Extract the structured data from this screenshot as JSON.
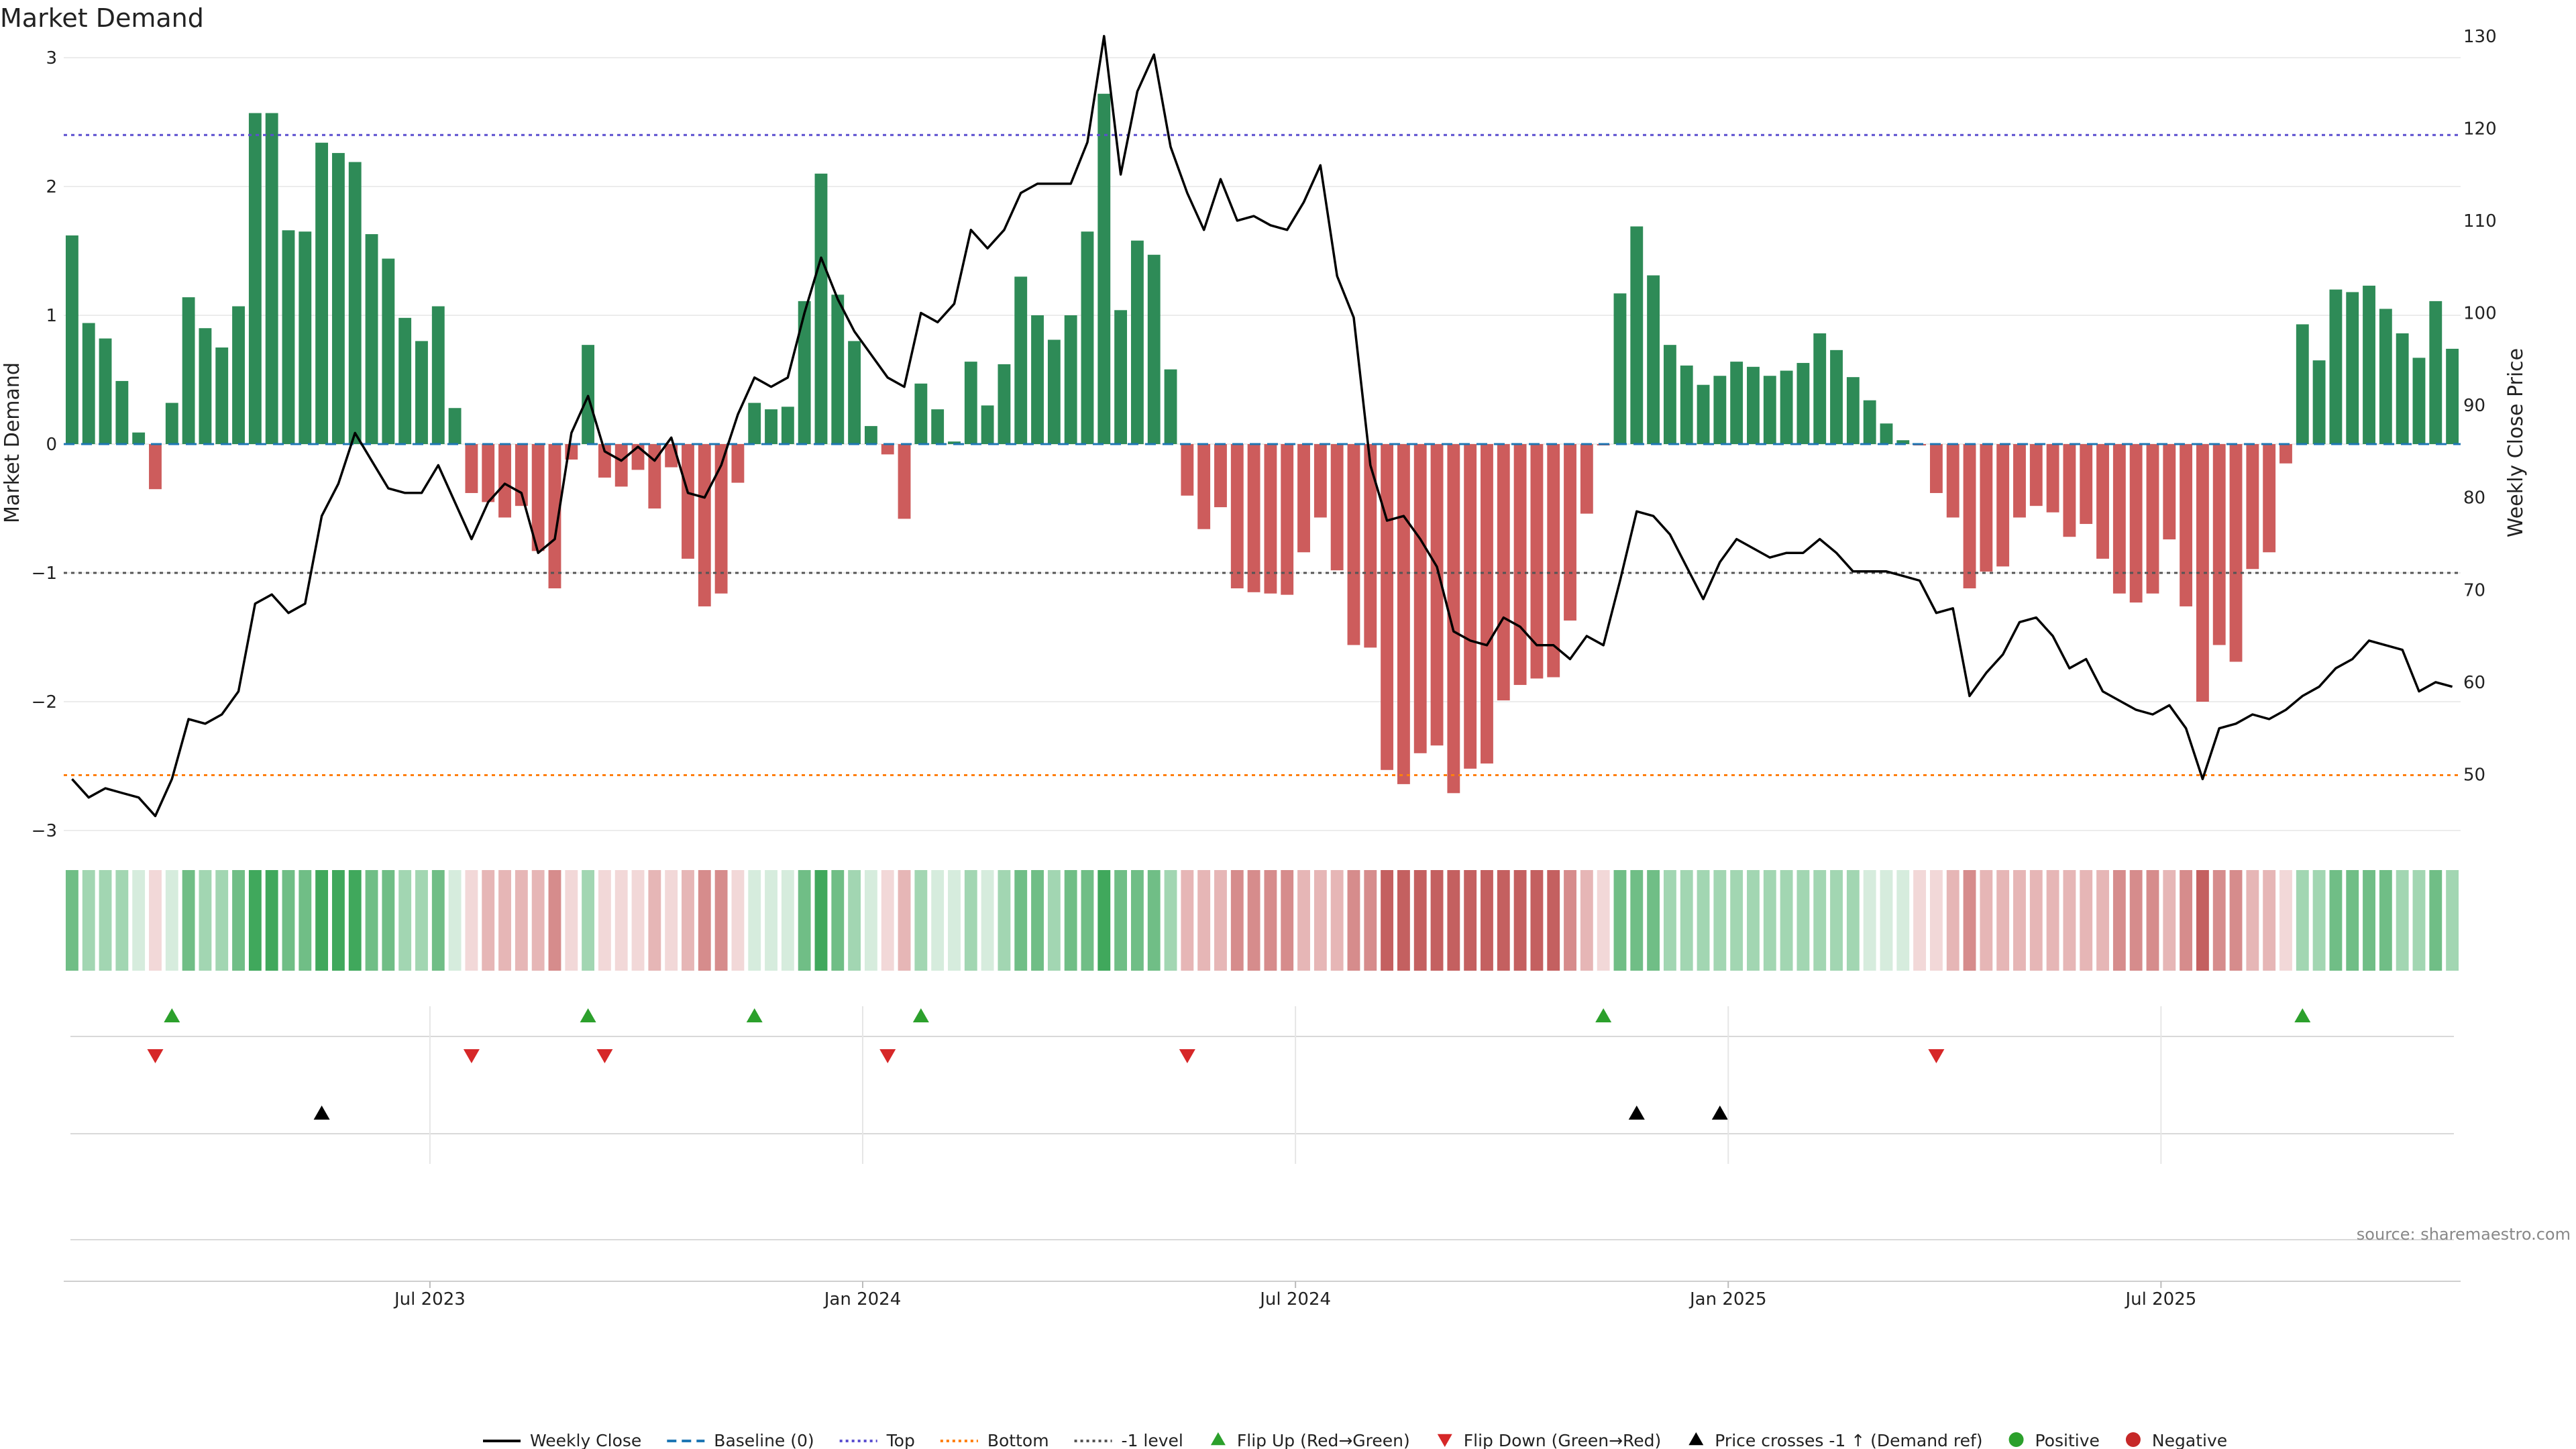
{
  "chart_data": {
    "type": "bar",
    "title": "Market Demand",
    "ylabel_left": "Market Demand",
    "ylabel_right": "Weekly Close Price",
    "ylim_left": [
      -3,
      3
    ],
    "ylim_right": [
      44,
      131
    ],
    "yticks_left": [
      3,
      2,
      1,
      0,
      -1,
      -2,
      -3
    ],
    "yticks_left_labels": [
      "3",
      "2",
      "1",
      "0",
      "−1",
      "−2",
      "−3"
    ],
    "yticks_right": [
      130,
      120,
      110,
      100,
      90,
      80,
      70,
      60,
      50
    ],
    "xticks": [
      {
        "index": 22,
        "label": "Jul 2023"
      },
      {
        "index": 48,
        "label": "Jan 2024"
      },
      {
        "index": 74,
        "label": "Jul 2024"
      },
      {
        "index": 100,
        "label": "Jan 2025"
      },
      {
        "index": 126,
        "label": "Jul 2025"
      }
    ],
    "reference_lines": {
      "top": 2.4,
      "bottom": -2.57,
      "minus_one": -1,
      "baseline": 0
    },
    "demand": [
      1.62,
      0.94,
      0.82,
      0.49,
      0.09,
      -0.35,
      0.32,
      1.14,
      0.9,
      0.75,
      1.07,
      2.57,
      2.57,
      1.66,
      1.65,
      2.34,
      2.26,
      2.19,
      1.63,
      1.44,
      0.98,
      0.8,
      1.07,
      0.28,
      -0.38,
      -0.45,
      -0.57,
      -0.48,
      -0.83,
      -1.12,
      -0.12,
      0.77,
      -0.26,
      -0.33,
      -0.2,
      -0.5,
      -0.18,
      -0.89,
      -1.26,
      -1.16,
      -0.3,
      0.32,
      0.27,
      0.29,
      1.11,
      2.1,
      1.16,
      0.8,
      0.14,
      -0.08,
      -0.58,
      0.47,
      0.27,
      0.02,
      0.64,
      0.3,
      0.62,
      1.3,
      1.0,
      0.81,
      1.0,
      1.65,
      2.72,
      1.04,
      1.58,
      1.47,
      0.58,
      -0.4,
      -0.66,
      -0.49,
      -1.12,
      -1.15,
      -1.16,
      -1.17,
      -0.84,
      -0.57,
      -0.98,
      -1.56,
      -1.58,
      -2.53,
      -2.64,
      -2.4,
      -2.34,
      -2.71,
      -2.52,
      -2.48,
      -1.99,
      -1.87,
      -1.82,
      -1.81,
      -1.37,
      -0.54,
      -0.01,
      1.17,
      1.69,
      1.31,
      0.77,
      0.61,
      0.46,
      0.53,
      0.64,
      0.6,
      0.53,
      0.57,
      0.63,
      0.86,
      0.73,
      0.52,
      0.34,
      0.16,
      0.03,
      -0.01,
      -0.38,
      -0.57,
      -1.12,
      -0.99,
      -0.95,
      -0.57,
      -0.48,
      -0.53,
      -0.72,
      -0.62,
      -0.89,
      -1.16,
      -1.23,
      -1.16,
      -0.74,
      -1.26,
      -2.0,
      -1.56,
      -1.69,
      -0.97,
      -0.84,
      -0.15,
      0.93,
      0.65,
      1.2,
      1.18,
      1.23,
      1.05,
      0.86,
      0.67,
      1.11,
      0.74
    ],
    "close": [
      49.5,
      47.5,
      48.5,
      48,
      47.5,
      45.5,
      49.5,
      56,
      55.5,
      56.5,
      59,
      68.5,
      69.5,
      67.5,
      68.5,
      78,
      81.5,
      87,
      84,
      81,
      80.5,
      80.5,
      83.5,
      79.5,
      75.5,
      79.5,
      81.5,
      80.5,
      74,
      75.5,
      87,
      91,
      85,
      84,
      85.5,
      84,
      86.5,
      80.5,
      80,
      83.5,
      89,
      93,
      92,
      93,
      100,
      106,
      101.5,
      98,
      95.5,
      93,
      92,
      100,
      99,
      101,
      109,
      107,
      109,
      113,
      114,
      114,
      114,
      118.5,
      130,
      115,
      124,
      128,
      118,
      113,
      109,
      114.5,
      110,
      110.5,
      109.5,
      109,
      112,
      116,
      104,
      99.5,
      83.5,
      77.5,
      78,
      75.5,
      72.5,
      65.5,
      64.5,
      64,
      67,
      66,
      64,
      64,
      62.5,
      65,
      64,
      71,
      78.5,
      78,
      76,
      72.5,
      69,
      73,
      75.5,
      74.5,
      73.5,
      74,
      74,
      75.5,
      74,
      72,
      72,
      72,
      71.5,
      71,
      67.5,
      68,
      58.5,
      61,
      63,
      66.5,
      67,
      65,
      61.5,
      62.5,
      59,
      58,
      57,
      56.5,
      57.5,
      55,
      49.5,
      55,
      55.5,
      56.5,
      56,
      57,
      58.5,
      59.5,
      61.5,
      62.5,
      64.5,
      64,
      63.5,
      59,
      60,
      59.5
    ],
    "flip_up_indices": [
      6,
      31,
      41,
      51,
      92,
      134
    ],
    "flip_down_indices": [
      5,
      24,
      32,
      49,
      67,
      112
    ],
    "price_cross_indices": [
      15,
      94,
      99
    ],
    "legend": [
      {
        "label": "Weekly Close",
        "kind": "line-solid",
        "color": "#000000"
      },
      {
        "label": "Baseline (0)",
        "kind": "line-dashed",
        "color": "#1f77b4"
      },
      {
        "label": "Top",
        "kind": "line-dotted",
        "color": "#5b4fcf"
      },
      {
        "label": "Bottom",
        "kind": "line-dotted",
        "color": "#ff7f0e"
      },
      {
        "label": "-1 level",
        "kind": "line-dotted",
        "color": "#555555"
      },
      {
        "label": "Flip Up (Red→Green)",
        "kind": "tri-up",
        "color": "#2ca02c"
      },
      {
        "label": "Flip Down (Green→Red)",
        "kind": "tri-down",
        "color": "#d62728"
      },
      {
        "label": "Price crosses -1 ↑ (Demand ref)",
        "kind": "tri-up",
        "color": "#000000"
      },
      {
        "label": "Positive",
        "kind": "dot",
        "color": "#2ca02c"
      },
      {
        "label": "Negative",
        "kind": "dot",
        "color": "#c62828"
      }
    ],
    "colors": {
      "positive_bar": "#2e8b57",
      "negative_bar": "#cd5c5c",
      "flip_up": "#2ca02c",
      "flip_down": "#d62728",
      "price_line": "#000000"
    }
  },
  "source_note": "source: sharemaestro.com"
}
